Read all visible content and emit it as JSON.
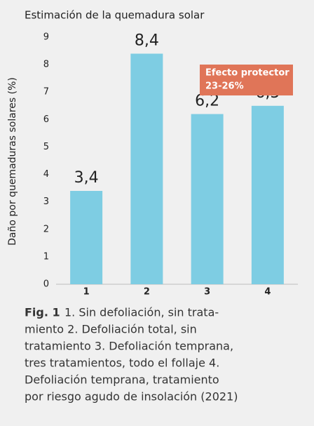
{
  "chart_data": {
    "type": "bar",
    "title": "Estimación de la quemadura solar",
    "y_label": "Daño por quemaduras solares (%)",
    "categories": [
      "1",
      "2",
      "3",
      "4"
    ],
    "values": [
      3.4,
      8.4,
      6.2,
      6.5
    ],
    "value_labels": [
      "3,4",
      "8,4",
      "6,2",
      "6,5"
    ],
    "color": "#7ecde3",
    "ylim": [
      0,
      9
    ],
    "yticks": [
      0,
      1,
      2,
      3,
      4,
      5,
      6,
      7,
      8,
      9
    ],
    "grid": false,
    "annotation": [
      "Efecto protector",
      "23-26%"
    ],
    "annotation_color": "#e07558",
    "caption_label": "Fig. 1",
    "caption_lines": [
      "1. Sin defoliación, sin trata-",
      "miento 2. Defoliación total, sin",
      "tratamiento 3. Defoliación temprana,",
      "tres tratamientos, todo el follaje 4.",
      "Defoliación temprana, tratamiento",
      "por riesgo agudo de insolación (2021)"
    ]
  }
}
